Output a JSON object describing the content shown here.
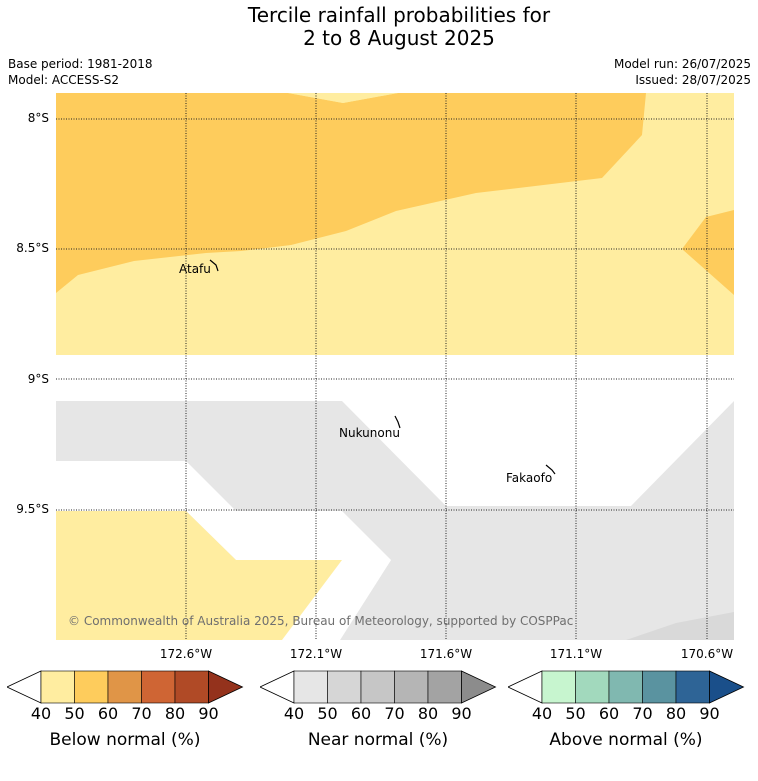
{
  "title": {
    "line1": "Tercile rainfall probabilities for",
    "line2": "2 to 8 August 2025"
  },
  "meta": {
    "base_period": "Base period: 1981-2018",
    "model": "Model: ACCESS-S2",
    "model_run": "Model run: 26/07/2025",
    "issued": "Issued: 28/07/2025"
  },
  "map": {
    "latitude_labels": [
      "8°S",
      "8.5°S",
      "9°S",
      "9.5°S"
    ],
    "longitude_labels": [
      "172.6°W",
      "172.1°W",
      "171.6°W",
      "171.1°W",
      "170.6°W"
    ],
    "places": [
      {
        "name": "Atafu"
      },
      {
        "name": "Nukunonu"
      },
      {
        "name": "Fakaofo"
      }
    ],
    "copyright": "© Commonwealth of Australia 2025, Bureau of Meteorology, supported by COSPPac"
  },
  "legends": [
    {
      "title": "Below normal (%)",
      "ticks": [
        "40",
        "50",
        "60",
        "70",
        "80",
        "90"
      ],
      "colors": [
        "#ffffff",
        "#ffeda0",
        "#fecc5c",
        "#e09547",
        "#cf6534",
        "#b04a26",
        "#94321c"
      ]
    },
    {
      "title": "Near normal (%)",
      "ticks": [
        "40",
        "50",
        "60",
        "70",
        "80",
        "90"
      ],
      "colors": [
        "#ffffff",
        "#e6e6e6",
        "#d6d6d6",
        "#c6c6c6",
        "#b5b5b5",
        "#a3a3a3",
        "#8c8c8c"
      ]
    },
    {
      "title": "Above normal (%)",
      "ticks": [
        "40",
        "50",
        "60",
        "70",
        "80",
        "90"
      ],
      "colors": [
        "#ffffff",
        "#c7f5cf",
        "#a2d9bd",
        "#80b8b0",
        "#5a93a0",
        "#2e6496",
        "#1a4f8a"
      ]
    }
  ]
}
